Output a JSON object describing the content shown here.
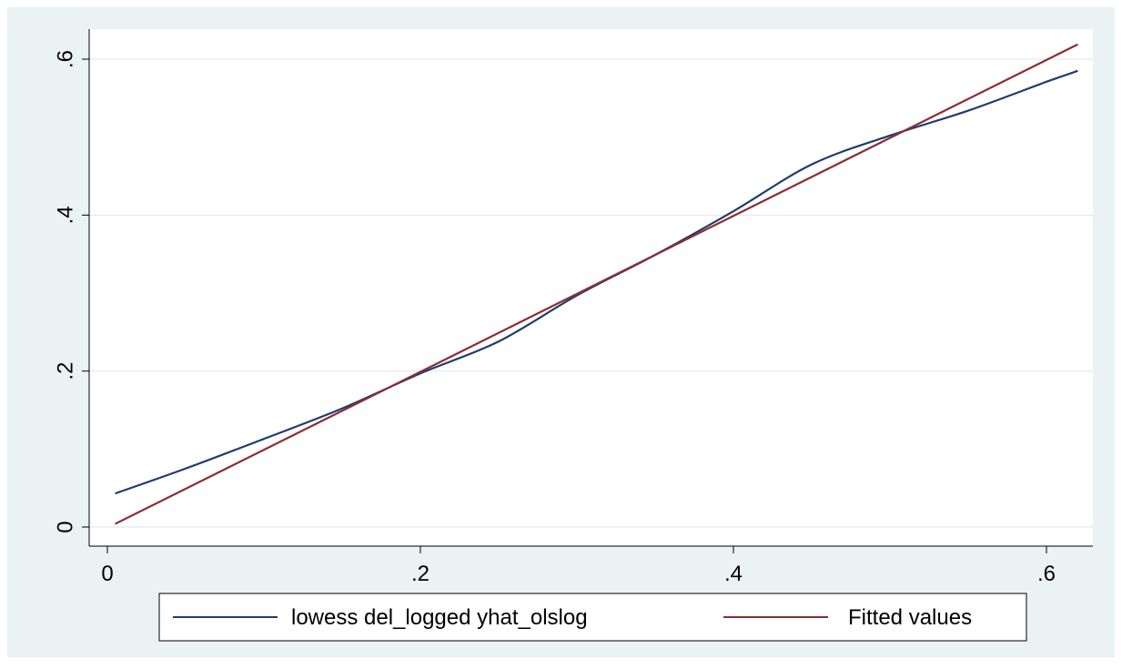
{
  "chart_data": {
    "type": "line",
    "title": "",
    "xlabel": "",
    "ylabel": "",
    "xlim": [
      0,
      0.62
    ],
    "ylim": [
      0,
      0.62
    ],
    "x_ticks": [
      0,
      0.2,
      0.4,
      0.6
    ],
    "x_tick_labels": [
      "0",
      ".2",
      ".4",
      ".6"
    ],
    "y_ticks": [
      0,
      0.2,
      0.4,
      0.6
    ],
    "y_tick_labels": [
      "0",
      ".2",
      ".4",
      ".6"
    ],
    "grid": "horizontal",
    "legend_placement": "bottom",
    "series": [
      {
        "name": "lowess del_logged yhat_olslog",
        "color": "#1f3d6e",
        "x": [
          0.005,
          0.05,
          0.1,
          0.15,
          0.2,
          0.25,
          0.3,
          0.35,
          0.4,
          0.45,
          0.5,
          0.55,
          0.6,
          0.62
        ],
        "y": [
          0.043,
          0.075,
          0.113,
          0.152,
          0.197,
          0.238,
          0.297,
          0.349,
          0.405,
          0.465,
          0.502,
          0.534,
          0.571,
          0.585
        ]
      },
      {
        "name": "Fitted values",
        "color": "#8b2e35",
        "x": [
          0.005,
          0.62
        ],
        "y": [
          0.004,
          0.619
        ]
      }
    ]
  },
  "colors": {
    "outer_background": "#eaf2f3",
    "plot_background": "#ffffff",
    "gridline": "#e6eef0",
    "axis": "#000000"
  }
}
